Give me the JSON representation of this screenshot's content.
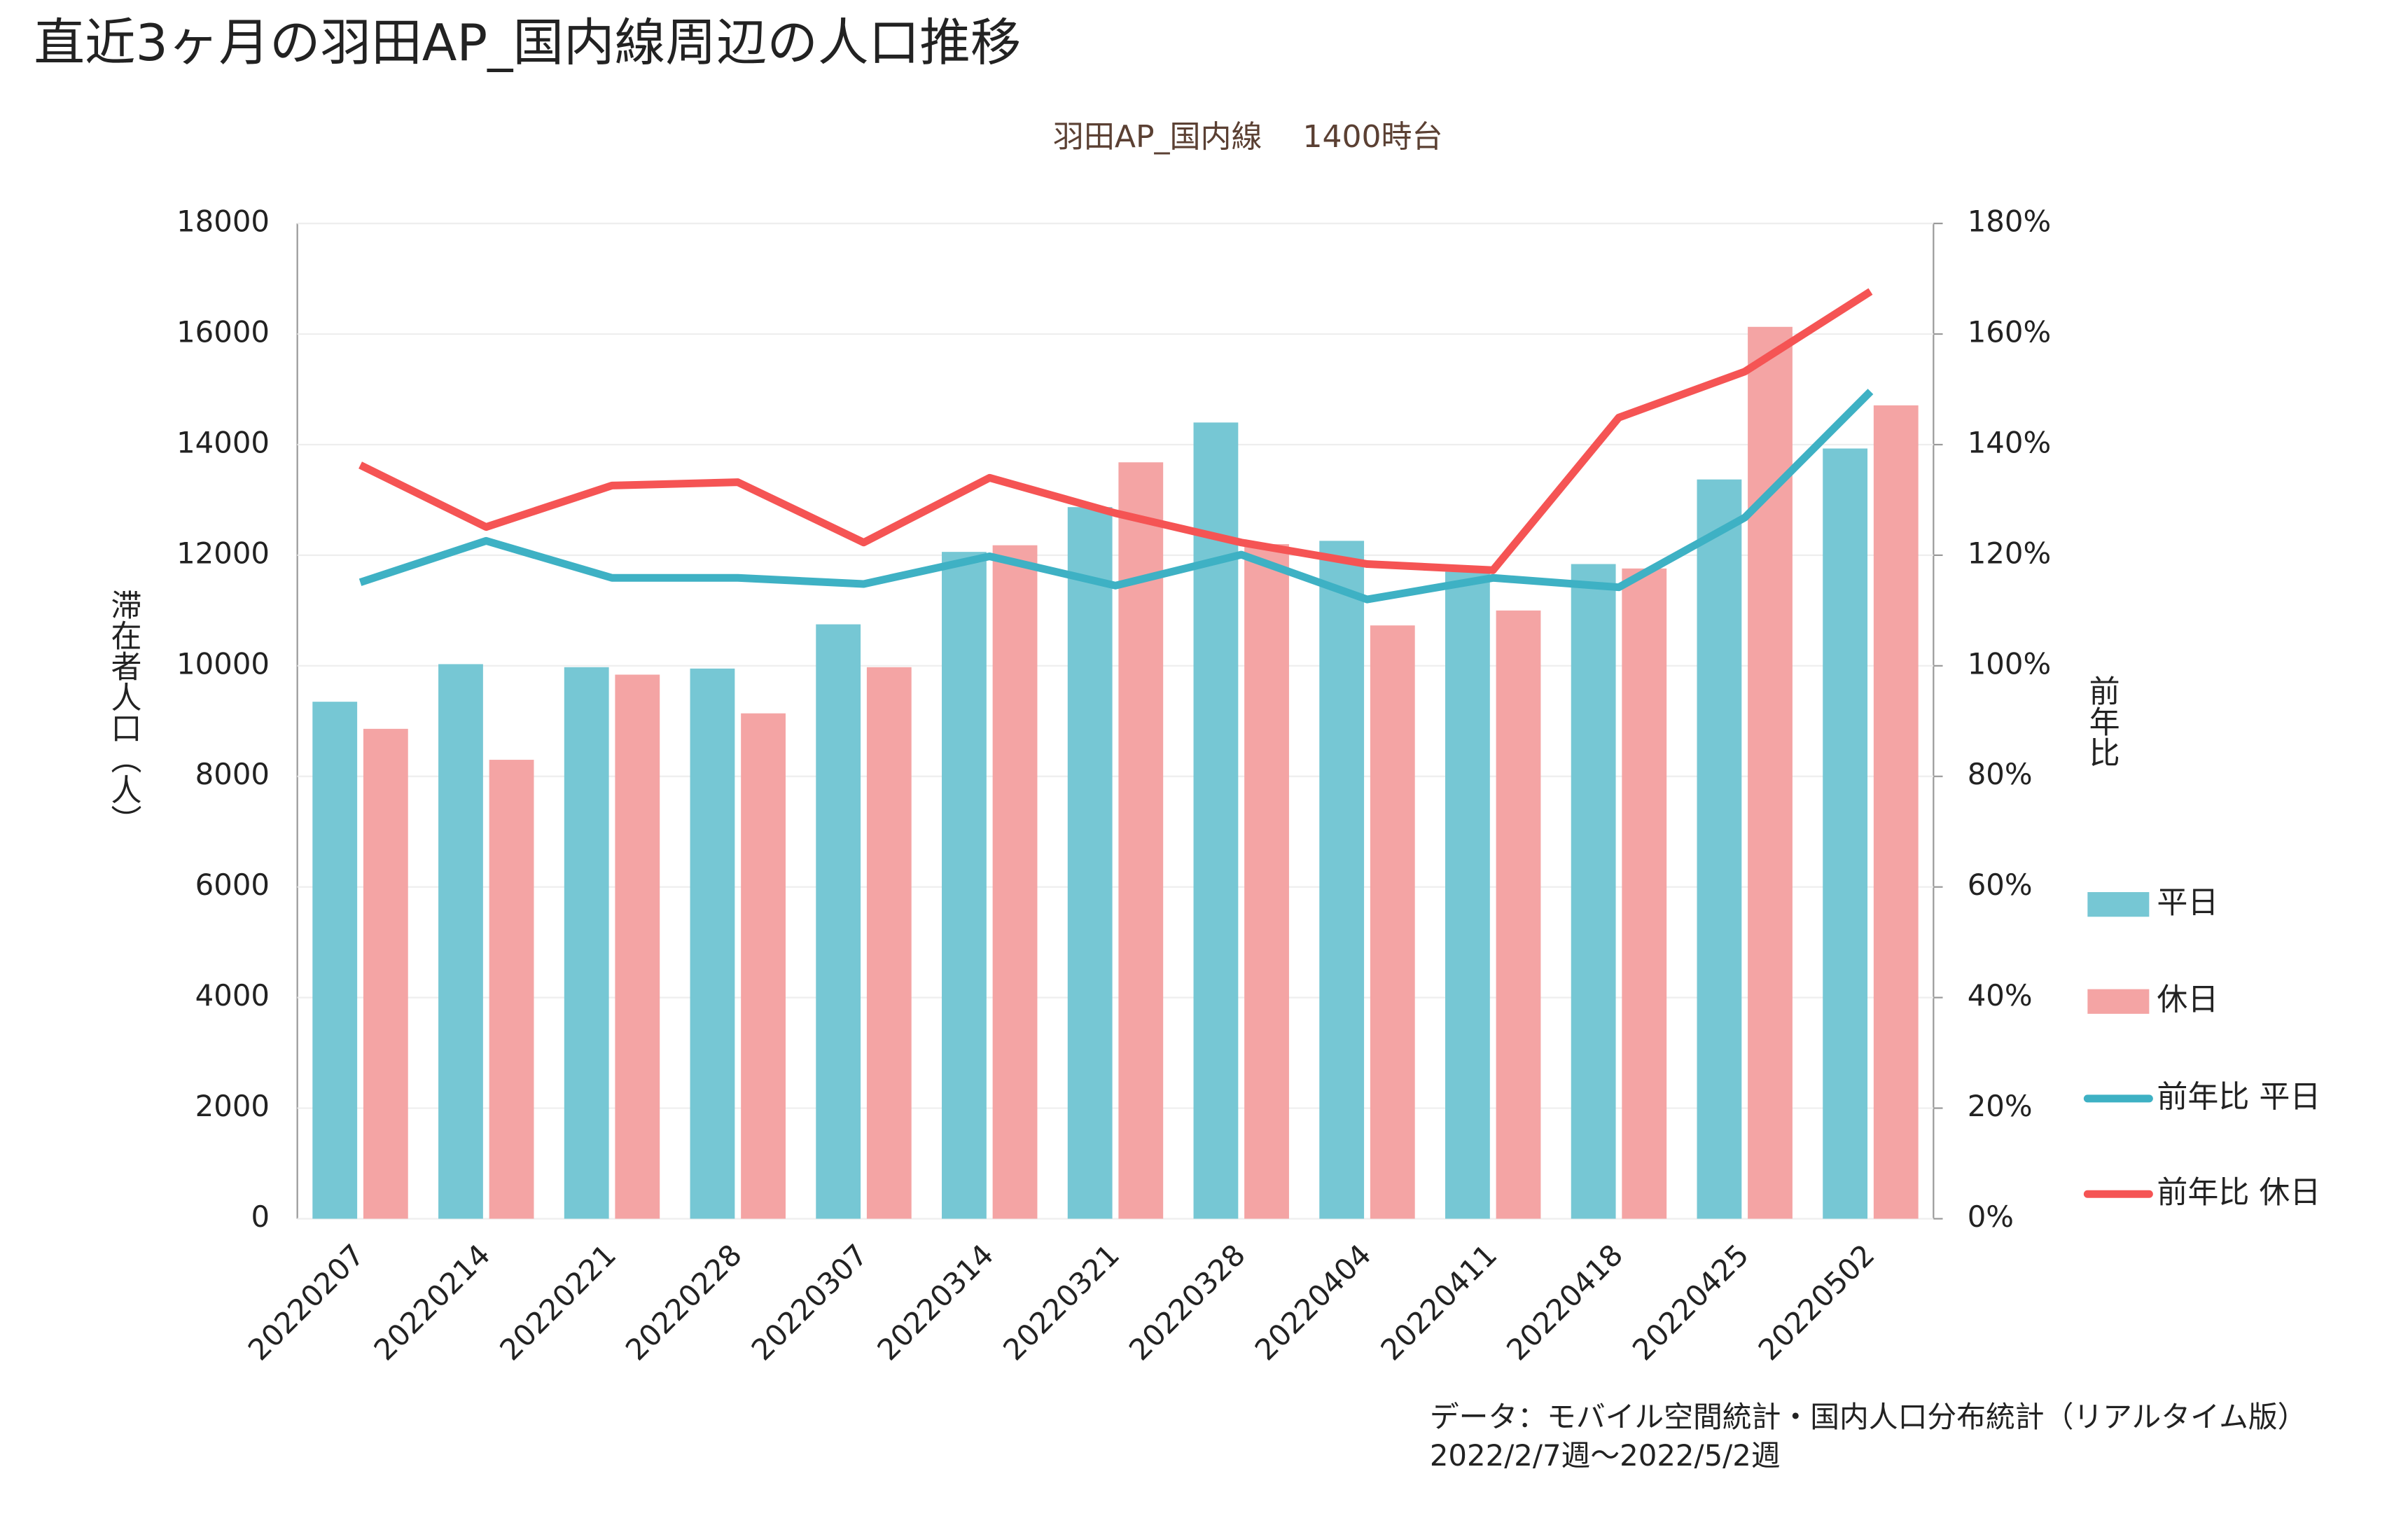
{
  "chart_data": {
    "type": "bar",
    "title": "直近3ヶ月の羽田AP_国内線周辺の人口推移",
    "subtitle": "羽田AP_国内線　 1400時台",
    "y_label": "滞在者人口（人）",
    "y2_label": "前年比",
    "source": "データ：モバイル空間統計・国内人口分布統計（リアルタイム版）",
    "period": "2022/2/7週〜2022/5/2週",
    "categories": [
      "20220207",
      "20220214",
      "20220221",
      "20220228",
      "20220307",
      "20220314",
      "20220321",
      "20220328",
      "20220404",
      "20220411",
      "20220418",
      "20220425",
      "20220502"
    ],
    "series": [
      {
        "name": "平日",
        "type": "bar",
        "color": "#76c7d4",
        "values": [
          9350,
          10030,
          9975,
          9950,
          10750,
          12060,
          12870,
          14400,
          12260,
          11700,
          11840,
          13370,
          13930
        ]
      },
      {
        "name": "休日",
        "type": "bar",
        "color": "#f4a4a4",
        "values": [
          8860,
          8300,
          9840,
          9140,
          9975,
          12180,
          13680,
          12200,
          10730,
          11000,
          11760,
          16130,
          14710
        ]
      },
      {
        "name": "前年比 平日",
        "type": "line",
        "axis": "y2",
        "color": "#3eb1c4",
        "values": [
          115.1,
          122.6,
          115.9,
          115.9,
          114.8,
          119.8,
          114.5,
          120.1,
          112.0,
          115.9,
          114.2,
          126.8,
          149.6
        ]
      },
      {
        "name": "前年比 休日",
        "type": "line",
        "axis": "y2",
        "color": "#f55454",
        "values": [
          136.3,
          125.1,
          132.6,
          133.2,
          122.3,
          134.0,
          127.6,
          122.3,
          118.4,
          117.3,
          144.9,
          153.2,
          167.7
        ]
      }
    ],
    "ylim": [
      0,
      18000
    ],
    "yticks": [
      0,
      2000,
      4000,
      6000,
      8000,
      10000,
      12000,
      14000,
      16000,
      18000
    ],
    "y2lim": [
      0,
      180
    ],
    "y2ticks": [
      {
        "value": 0,
        "label": "0%"
      },
      {
        "value": 20,
        "label": "20%"
      },
      {
        "value": 40,
        "label": "40%"
      },
      {
        "value": 60,
        "label": "60%"
      },
      {
        "value": 80,
        "label": "80%"
      },
      {
        "value": 100,
        "label": "100%"
      },
      {
        "value": 120,
        "label": "120%"
      },
      {
        "value": 140,
        "label": "140%"
      },
      {
        "value": 160,
        "label": "160%"
      },
      {
        "value": 180,
        "label": "180%"
      }
    ],
    "grid": true,
    "legend": "right"
  }
}
